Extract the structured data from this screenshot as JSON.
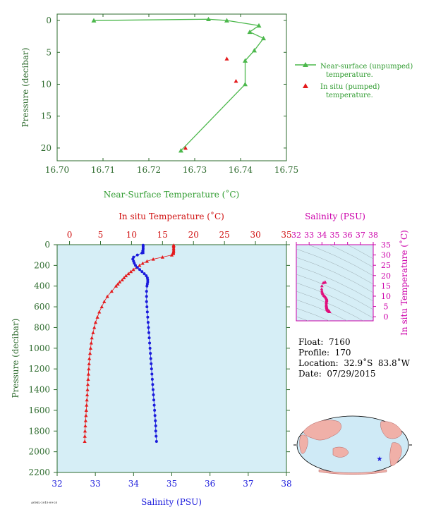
{
  "chart_data": [
    {
      "type": "line",
      "id": "near-surface",
      "xlabel": "Near-Surface Temperature (˚C)",
      "ylabel": "Pressure (decibar)",
      "xlim": [
        16.7,
        16.75
      ],
      "ylim": [
        22,
        -1
      ],
      "xticks": [
        "16.70",
        "16.71",
        "16.72",
        "16.73",
        "16.74",
        "16.75"
      ],
      "yticks": [
        "0",
        "5",
        "10",
        "15",
        "20"
      ],
      "series": [
        {
          "name": "Near-surface (unpumped) temperature.",
          "color": "#4cb84c",
          "marker": "triangle",
          "x": [
            16.708,
            16.733,
            16.737,
            16.744,
            16.742,
            16.745,
            16.743,
            16.741,
            16.741,
            16.727
          ],
          "y": [
            0,
            -0.2,
            0,
            0.8,
            1.8,
            2.8,
            4.7,
            6.3,
            10.0,
            20.4
          ]
        },
        {
          "name": "In situ (pumped) temperature.",
          "color": "#e41a1c",
          "marker": "triangle",
          "x": [
            16.737,
            16.739,
            16.728
          ],
          "y": [
            6.0,
            9.5,
            20.0
          ]
        }
      ]
    },
    {
      "type": "line",
      "id": "profile",
      "xlabel_top": "In situ Temperature (˚C)",
      "xlabel_bottom": "Salinity (PSU)",
      "ylabel": "Pressure (decibar)",
      "temp_lim": [
        -2,
        35
      ],
      "sal_lim": [
        32,
        38
      ],
      "ylim": [
        2200,
        0
      ],
      "temp_ticks": [
        "0",
        "5",
        "10",
        "15",
        "20",
        "25",
        "30",
        "35"
      ],
      "sal_ticks": [
        "32",
        "33",
        "34",
        "35",
        "36",
        "37",
        "38"
      ],
      "yticks": [
        "0",
        "200",
        "400",
        "600",
        "800",
        "1000",
        "1200",
        "1400",
        "1600",
        "1800",
        "2000",
        "2200"
      ],
      "temperature": {
        "color": "#e41a1c",
        "pressure": [
          5,
          20,
          40,
          60,
          80,
          100,
          120,
          140,
          160,
          180,
          200,
          220,
          240,
          260,
          280,
          300,
          320,
          340,
          360,
          380,
          400,
          450,
          500,
          550,
          600,
          650,
          700,
          750,
          800,
          850,
          900,
          950,
          1000,
          1050,
          1100,
          1150,
          1200,
          1250,
          1300,
          1350,
          1400,
          1450,
          1500,
          1550,
          1600,
          1650,
          1700,
          1750,
          1800,
          1850,
          1900
        ],
        "values": [
          16.8,
          16.8,
          16.8,
          16.8,
          16.7,
          16.5,
          15.0,
          13.5,
          12.5,
          11.8,
          11.3,
          10.8,
          10.3,
          9.9,
          9.5,
          9.1,
          8.8,
          8.5,
          8.1,
          7.8,
          7.5,
          6.8,
          6.1,
          5.6,
          5.2,
          4.8,
          4.5,
          4.2,
          4.0,
          3.8,
          3.6,
          3.5,
          3.4,
          3.3,
          3.2,
          3.15,
          3.1,
          3.05,
          3.0,
          2.95,
          2.9,
          2.85,
          2.8,
          2.75,
          2.7,
          2.65,
          2.6,
          2.55,
          2.5,
          2.47,
          2.45
        ]
      },
      "salinity": {
        "color": "#1a1adc",
        "pressure": [
          5,
          20,
          40,
          60,
          80,
          100,
          120,
          140,
          160,
          180,
          200,
          220,
          240,
          260,
          280,
          300,
          320,
          340,
          360,
          380,
          400,
          450,
          500,
          550,
          600,
          650,
          700,
          750,
          800,
          850,
          900,
          950,
          1000,
          1050,
          1100,
          1150,
          1200,
          1250,
          1300,
          1350,
          1400,
          1450,
          1500,
          1550,
          1600,
          1650,
          1700,
          1750,
          1800,
          1850,
          1900
        ],
        "values": [
          34.25,
          34.25,
          34.25,
          34.24,
          34.22,
          34.1,
          34.0,
          33.98,
          34.0,
          34.02,
          34.05,
          34.1,
          34.16,
          34.22,
          34.28,
          34.33,
          34.36,
          34.37,
          34.37,
          34.36,
          34.35,
          34.34,
          34.34,
          34.34,
          34.35,
          34.36,
          34.37,
          34.38,
          34.39,
          34.4,
          34.41,
          34.42,
          34.43,
          34.44,
          34.45,
          34.46,
          34.47,
          34.48,
          34.49,
          34.5,
          34.51,
          34.52,
          34.53,
          34.54,
          34.55,
          34.56,
          34.57,
          34.58,
          34.58,
          34.59,
          34.6
        ]
      }
    },
    {
      "type": "scatter",
      "id": "ts-diagram",
      "xlabel": "Salinity (PSU)",
      "ylabel": "In situ Temperature (˚C)",
      "xlim": [
        32,
        38
      ],
      "ylim": [
        -2,
        35
      ],
      "xticks": [
        "32",
        "33",
        "34",
        "35",
        "36",
        "37",
        "38"
      ],
      "yticks": [
        "0",
        "5",
        "10",
        "15",
        "20",
        "25",
        "30",
        "35"
      ],
      "color": "#e0107c"
    }
  ],
  "profile_info": {
    "float": "Float:  7160",
    "profile": "Profile:  170",
    "location": "Location:  32.9˚S  83.8˚W",
    "date": "Date:  07/29/2015"
  },
  "footer": {
    "code": "AOML-2015-09-25"
  },
  "colors": {
    "axis_green": "#2e6b2e",
    "panel_bg": "#d6eef6",
    "temp_red": "#e41a1c",
    "sal_blue": "#1a1adc",
    "ts_magenta": "#cc00aa",
    "land": "#f0b0a8",
    "ocean": "#cfeaf6"
  }
}
